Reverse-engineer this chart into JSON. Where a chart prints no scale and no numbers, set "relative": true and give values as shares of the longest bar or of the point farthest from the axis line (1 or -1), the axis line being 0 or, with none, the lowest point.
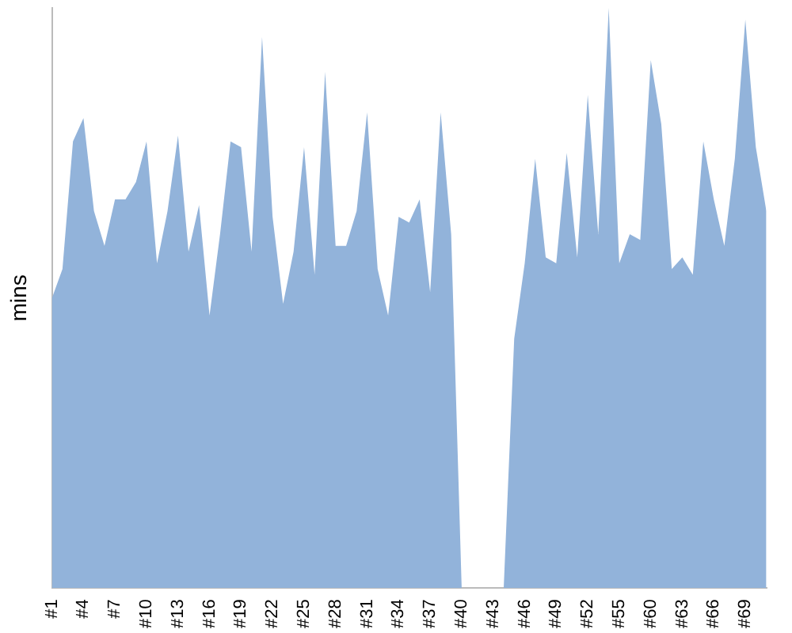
{
  "chart_data": {
    "type": "area",
    "ylabel": "mins",
    "relative": true,
    "legend": false,
    "grid": false,
    "categories": [
      "#1",
      null,
      null,
      "#4",
      null,
      null,
      "#7",
      null,
      null,
      "#10",
      null,
      null,
      "#13",
      null,
      null,
      "#16",
      null,
      null,
      "#19",
      null,
      null,
      "#22",
      null,
      null,
      "#25",
      null,
      null,
      "#28",
      null,
      null,
      "#31",
      null,
      null,
      "#34",
      null,
      null,
      "#37",
      null,
      null,
      "#40",
      null,
      null,
      "#43",
      null,
      null,
      "#46",
      null,
      null,
      "#49",
      null,
      null,
      "#52",
      null,
      null,
      "#55",
      null,
      null,
      "#60",
      null,
      null,
      "#63",
      null,
      null,
      "#66",
      null,
      null,
      "#69",
      null,
      null
    ],
    "series": [
      {
        "color": "#92b3da",
        "values": [
          0.5,
          0.55,
          0.77,
          0.81,
          0.65,
          0.59,
          0.67,
          0.67,
          0.7,
          0.77,
          0.56,
          0.65,
          0.78,
          0.58,
          0.66,
          0.47,
          0.61,
          0.77,
          0.76,
          0.58,
          0.95,
          0.64,
          0.49,
          0.58,
          0.76,
          0.54,
          0.89,
          0.59,
          0.59,
          0.65,
          0.82,
          0.55,
          0.47,
          0.64,
          0.63,
          0.67,
          0.51,
          0.82,
          0.61,
          0,
          0,
          0,
          0,
          0,
          0.43,
          0.56,
          0.74,
          0.57,
          0.56,
          0.75,
          0.57,
          0.85,
          0.61,
          1,
          0.56,
          0.61,
          0.6,
          0.91,
          0.8,
          0.55,
          0.57,
          0.54,
          0.77,
          0.67,
          0.59,
          0.74,
          0.98,
          0.76,
          0.65
        ]
      }
    ]
  }
}
